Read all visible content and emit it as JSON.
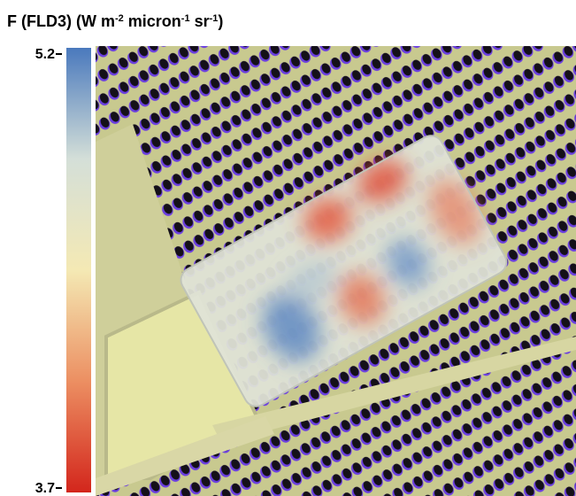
{
  "title": [
    "F (FLD3) (W m",
    "-2",
    " micron",
    "-1",
    " sr",
    "-1",
    ")"
  ],
  "colorbar": {
    "lim": [
      3.7,
      5.2
    ],
    "ticks": [
      5.2,
      3.7
    ],
    "colors": [
      "#d3261c",
      "#ec8f62",
      "#f4e9b4",
      "#d4dfd8",
      "#4a79bd"
    ]
  }
}
